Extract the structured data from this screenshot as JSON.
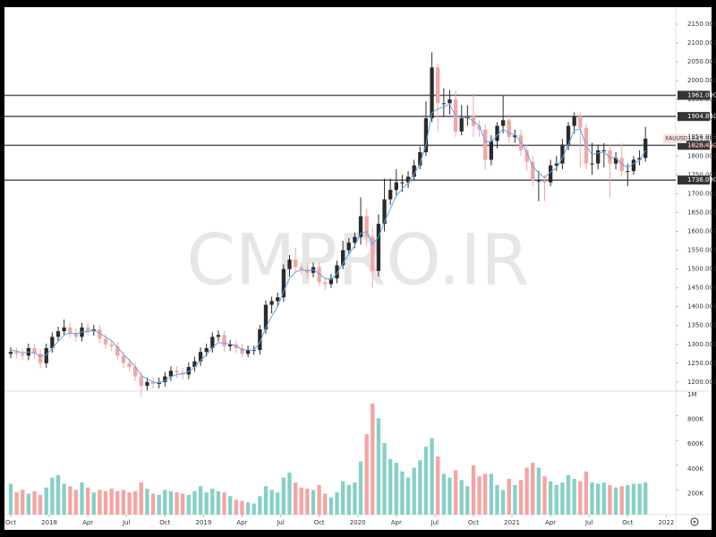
{
  "chart_data": {
    "type": "candlestick",
    "symbol": "XAUUSD",
    "change_label": "+45.40%",
    "watermark": "CMPRO.IR",
    "grid": false,
    "xlim": [
      -1.05,
      112.1
    ],
    "xticks": [
      {
        "value": 0,
        "label": "Oct"
      },
      {
        "value": 6.5,
        "label": "2018"
      },
      {
        "value": 13,
        "label": "Apr"
      },
      {
        "value": 19.5,
        "label": "Jul"
      },
      {
        "value": 26,
        "label": "Oct"
      },
      {
        "value": 32.5,
        "label": "2019"
      },
      {
        "value": 39,
        "label": "Apr"
      },
      {
        "value": 45.5,
        "label": "Jul"
      },
      {
        "value": 52,
        "label": "Oct"
      },
      {
        "value": 58.5,
        "label": "2020"
      },
      {
        "value": 65,
        "label": "Apr"
      },
      {
        "value": 71.5,
        "label": "Jul"
      },
      {
        "value": 78,
        "label": "Oct"
      },
      {
        "value": 84.5,
        "label": "2021"
      },
      {
        "value": 91,
        "label": "Apr"
      },
      {
        "value": 97.5,
        "label": "Jul"
      },
      {
        "value": 104,
        "label": "Oct"
      },
      {
        "value": 110.5,
        "label": "2022"
      }
    ],
    "ylim": [
      1176,
      2195
    ],
    "yticks": [
      {
        "value": 1200,
        "label": "1200.000"
      },
      {
        "value": 1250,
        "label": "1250.000"
      },
      {
        "value": 1300,
        "label": "1300.000"
      },
      {
        "value": 1350,
        "label": "1350.000"
      },
      {
        "value": 1400,
        "label": "1400.000"
      },
      {
        "value": 1450,
        "label": "1450.000"
      },
      {
        "value": 1500,
        "label": "1500.000"
      },
      {
        "value": 1550,
        "label": "1550.000"
      },
      {
        "value": 1600,
        "label": "1600.000"
      },
      {
        "value": 1650,
        "label": "1650.000"
      },
      {
        "value": 1700,
        "label": "1700.000"
      },
      {
        "value": 1750,
        "label": "1750.000"
      },
      {
        "value": 1800,
        "label": "1800.000"
      },
      {
        "value": 1850,
        "label": "1850.000"
      },
      {
        "value": 1900,
        "label": "1900.000"
      },
      {
        "value": 1950,
        "label": "1950.000"
      },
      {
        "value": 2000,
        "label": "2000.000"
      },
      {
        "value": 2050,
        "label": "2050.000"
      },
      {
        "value": 2100,
        "label": "2100.000"
      },
      {
        "value": 2150,
        "label": "2150.000"
      }
    ],
    "up_color": "#2b2b2b",
    "down_color": "#f2a6a5",
    "open": [
      1275,
      1280,
      1275,
      1270,
      1290,
      1275,
      1250,
      1290,
      1320,
      1335,
      1345,
      1330,
      1320,
      1345,
      1335,
      1340,
      1315,
      1300,
      1295,
      1270,
      1250,
      1240,
      1215,
      1190,
      1200,
      1195,
      1200,
      1215,
      1230,
      1225,
      1220,
      1240,
      1255,
      1280,
      1290,
      1320,
      1325,
      1295,
      1300,
      1290,
      1275,
      1285,
      1285,
      1340,
      1405,
      1415,
      1425,
      1500,
      1525,
      1505,
      1500,
      1490,
      1505,
      1465,
      1460,
      1475,
      1510,
      1550,
      1570,
      1585,
      1640,
      1585,
      1495,
      1620,
      1685,
      1710,
      1730,
      1730,
      1745,
      1775,
      1810,
      1900,
      2035,
      1940,
      1940,
      1950,
      1865,
      1900,
      1905,
      1880,
      1870,
      1790,
      1840,
      1880,
      1895,
      1850,
      1855,
      1815,
      1785,
      1735,
      1735,
      1730,
      1775,
      1780,
      1830,
      1880,
      1905,
      1875,
      1780,
      1780,
      1815,
      1815,
      1780,
      1795,
      1760,
      1760,
      1790,
      1795
    ],
    "high": [
      1292,
      1292,
      1287,
      1302,
      1302,
      1287,
      1302,
      1332,
      1347,
      1366,
      1357,
      1342,
      1357,
      1357,
      1352,
      1352,
      1327,
      1312,
      1307,
      1282,
      1262,
      1252,
      1227,
      1212,
      1212,
      1212,
      1227,
      1242,
      1242,
      1237,
      1252,
      1267,
      1292,
      1302,
      1332,
      1337,
      1337,
      1312,
      1312,
      1302,
      1297,
      1297,
      1352,
      1417,
      1427,
      1437,
      1512,
      1537,
      1557,
      1517,
      1517,
      1517,
      1517,
      1477,
      1487,
      1522,
      1575,
      1582,
      1597,
      1690,
      1660,
      1610,
      1645,
      1740,
      1740,
      1765,
      1750,
      1760,
      1790,
      1825,
      1945,
      2075,
      2045,
      1980,
      1975,
      1975,
      1935,
      1935,
      1965,
      1895,
      1885,
      1855,
      1890,
      1960,
      1910,
      1870,
      1870,
      1830,
      1800,
      1760,
      1750,
      1790,
      1800,
      1845,
      1890,
      1916,
      1915,
      1885,
      1835,
      1830,
      1834,
      1830,
      1810,
      1834,
      1780,
      1800,
      1815,
      1877
    ],
    "low": [
      1263,
      1263,
      1258,
      1258,
      1263,
      1236,
      1238,
      1278,
      1308,
      1323,
      1318,
      1307,
      1308,
      1323,
      1323,
      1303,
      1288,
      1283,
      1258,
      1238,
      1228,
      1203,
      1160,
      1178,
      1183,
      1183,
      1188,
      1203,
      1211,
      1208,
      1208,
      1228,
      1243,
      1268,
      1278,
      1308,
      1280,
      1283,
      1277,
      1266,
      1266,
      1272,
      1273,
      1328,
      1382,
      1400,
      1413,
      1480,
      1490,
      1485,
      1475,
      1478,
      1455,
      1445,
      1450,
      1462,
      1500,
      1540,
      1555,
      1565,
      1560,
      1450,
      1480,
      1600,
      1670,
      1695,
      1705,
      1715,
      1735,
      1765,
      1800,
      1890,
      1865,
      1905,
      1910,
      1850,
      1855,
      1880,
      1850,
      1850,
      1765,
      1775,
      1820,
      1860,
      1835,
      1835,
      1800,
      1760,
      1720,
      1680,
      1680,
      1720,
      1760,
      1765,
      1815,
      1860,
      1770,
      1765,
      1750,
      1765,
      1770,
      1690,
      1765,
      1745,
      1720,
      1750,
      1775,
      1785
    ],
    "close": [
      1280,
      1275,
      1270,
      1290,
      1275,
      1250,
      1290,
      1320,
      1335,
      1345,
      1330,
      1320,
      1345,
      1335,
      1340,
      1315,
      1300,
      1295,
      1270,
      1250,
      1240,
      1215,
      1190,
      1200,
      1195,
      1200,
      1215,
      1230,
      1225,
      1220,
      1240,
      1255,
      1280,
      1290,
      1320,
      1325,
      1295,
      1300,
      1290,
      1275,
      1285,
      1285,
      1340,
      1405,
      1415,
      1425,
      1500,
      1525,
      1505,
      1500,
      1490,
      1505,
      1465,
      1460,
      1475,
      1510,
      1550,
      1570,
      1585,
      1640,
      1585,
      1495,
      1620,
      1685,
      1710,
      1730,
      1730,
      1745,
      1775,
      1810,
      1900,
      2035,
      1940,
      1940,
      1950,
      1865,
      1900,
      1905,
      1880,
      1870,
      1790,
      1840,
      1880,
      1895,
      1850,
      1855,
      1815,
      1785,
      1735,
      1735,
      1730,
      1775,
      1780,
      1830,
      1880,
      1905,
      1875,
      1780,
      1780,
      1815,
      1815,
      1780,
      1795,
      1760,
      1760,
      1790,
      1795,
      1845.885
    ],
    "ma": {
      "color": "#5aa6e6",
      "values": [
        1285,
        1282,
        1278,
        1280,
        1278,
        1268,
        1272,
        1290,
        1308,
        1325,
        1330,
        1328,
        1333,
        1334,
        1337,
        1330,
        1320,
        1310,
        1292,
        1274,
        1258,
        1240,
        1218,
        1208,
        1200,
        1198,
        1204,
        1214,
        1220,
        1222,
        1228,
        1240,
        1258,
        1272,
        1292,
        1305,
        1303,
        1301,
        1296,
        1286,
        1285,
        1285,
        1305,
        1345,
        1375,
        1400,
        1440,
        1475,
        1492,
        1498,
        1495,
        1498,
        1488,
        1475,
        1472,
        1488,
        1515,
        1540,
        1562,
        1595,
        1600,
        1565,
        1585,
        1625,
        1660,
        1695,
        1712,
        1730,
        1752,
        1780,
        1830,
        1915,
        1925,
        1930,
        1938,
        1905,
        1902,
        1903,
        1892,
        1880,
        1838,
        1838,
        1855,
        1872,
        1860,
        1857,
        1836,
        1810,
        1772,
        1755,
        1742,
        1758,
        1768,
        1795,
        1830,
        1868,
        1872,
        1826,
        1804,
        1808,
        1811,
        1796,
        1795,
        1778,
        1769,
        1780,
        1788,
        1815
      ]
    },
    "volume": {
      "up_color": "#86d0c6",
      "down_color": "#f4a4a1",
      "ylim": [
        0,
        1000000
      ],
      "yticks": [
        {
          "value": 200000,
          "label": "200K"
        },
        {
          "value": 400000,
          "label": "400K"
        },
        {
          "value": 600000,
          "label": "600K"
        },
        {
          "value": 800000,
          "label": "800K"
        },
        {
          "value": 1000000,
          "label": "1M"
        }
      ],
      "values": [
        250000,
        180000,
        200000,
        170000,
        190000,
        160000,
        220000,
        300000,
        320000,
        250000,
        230000,
        200000,
        260000,
        220000,
        180000,
        200000,
        190000,
        210000,
        190000,
        200000,
        180000,
        190000,
        260000,
        210000,
        170000,
        160000,
        200000,
        190000,
        180000,
        170000,
        160000,
        190000,
        230000,
        180000,
        210000,
        190000,
        180000,
        150000,
        120000,
        110000,
        100000,
        90000,
        150000,
        230000,
        200000,
        180000,
        300000,
        340000,
        260000,
        220000,
        210000,
        200000,
        240000,
        170000,
        140000,
        180000,
        270000,
        240000,
        260000,
        430000,
        650000,
        900000,
        780000,
        580000,
        450000,
        420000,
        350000,
        300000,
        380000,
        440000,
        550000,
        620000,
        470000,
        330000,
        300000,
        360000,
        280000,
        230000,
        400000,
        310000,
        330000,
        330000,
        240000,
        200000,
        290000,
        240000,
        280000,
        380000,
        420000,
        380000,
        310000,
        270000,
        240000,
        260000,
        320000,
        290000,
        270000,
        350000,
        260000,
        250000,
        260000,
        240000,
        220000,
        230000,
        240000,
        250000,
        250000,
        260000
      ]
    },
    "levels": [
      {
        "value": 1961.09,
        "label": "1961.090"
      },
      {
        "value": 1904.84,
        "label": "1904.840"
      },
      {
        "value": 1828.43,
        "label": "1828.430"
      },
      {
        "value": 1736.09,
        "label": "1736.090"
      }
    ],
    "level_color": "#555555",
    "last_price": {
      "value": 1845.885,
      "label": "1845.885"
    }
  }
}
